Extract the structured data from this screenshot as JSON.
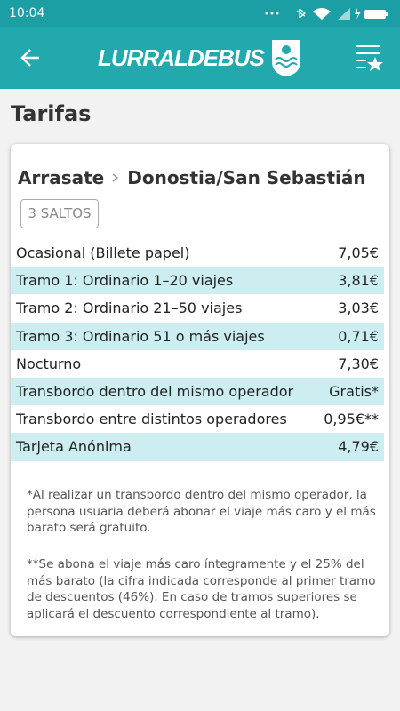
{
  "status_bar": {
    "time": "10:04"
  },
  "app_bar": {
    "logo": "LURRALDEBUS"
  },
  "page": {
    "title": "Tarifas"
  },
  "route": {
    "origin": "Arrasate",
    "destination": "Donostia/San Sebastián",
    "badge": "3 SALTOS"
  },
  "fares": [
    {
      "label": "Ocasional (Billete papel)",
      "price": "7,05€"
    },
    {
      "label": "Tramo 1: Ordinario 1–20 viajes",
      "price": "3,81€"
    },
    {
      "label": "Tramo 2: Ordinario 21–50 viajes",
      "price": "3,03€"
    },
    {
      "label": "Tramo 3: Ordinario 51 o más viajes",
      "price": "0,71€"
    },
    {
      "label": "Nocturno",
      "price": "7,30€"
    },
    {
      "label": "Transbordo dentro del mismo operador",
      "price": "Gratis*"
    },
    {
      "label": "Transbordo entre distintos operadores",
      "price": "0,95€**"
    },
    {
      "label": "Tarjeta Anónima",
      "price": "4,79€"
    }
  ],
  "notes": [
    "*Al realizar un transbordo dentro del mismo operador, la persona usuaria deberá abonar el viaje más caro y el más barato será gratuito.",
    "**Se abona el viaje más caro íntegramente y el 25% del más barato (la cifra indicada corresponde al primer tramo de descuentos (46%). En caso de tramos superiores se aplicará el descuento correspondiente al tramo)."
  ]
}
